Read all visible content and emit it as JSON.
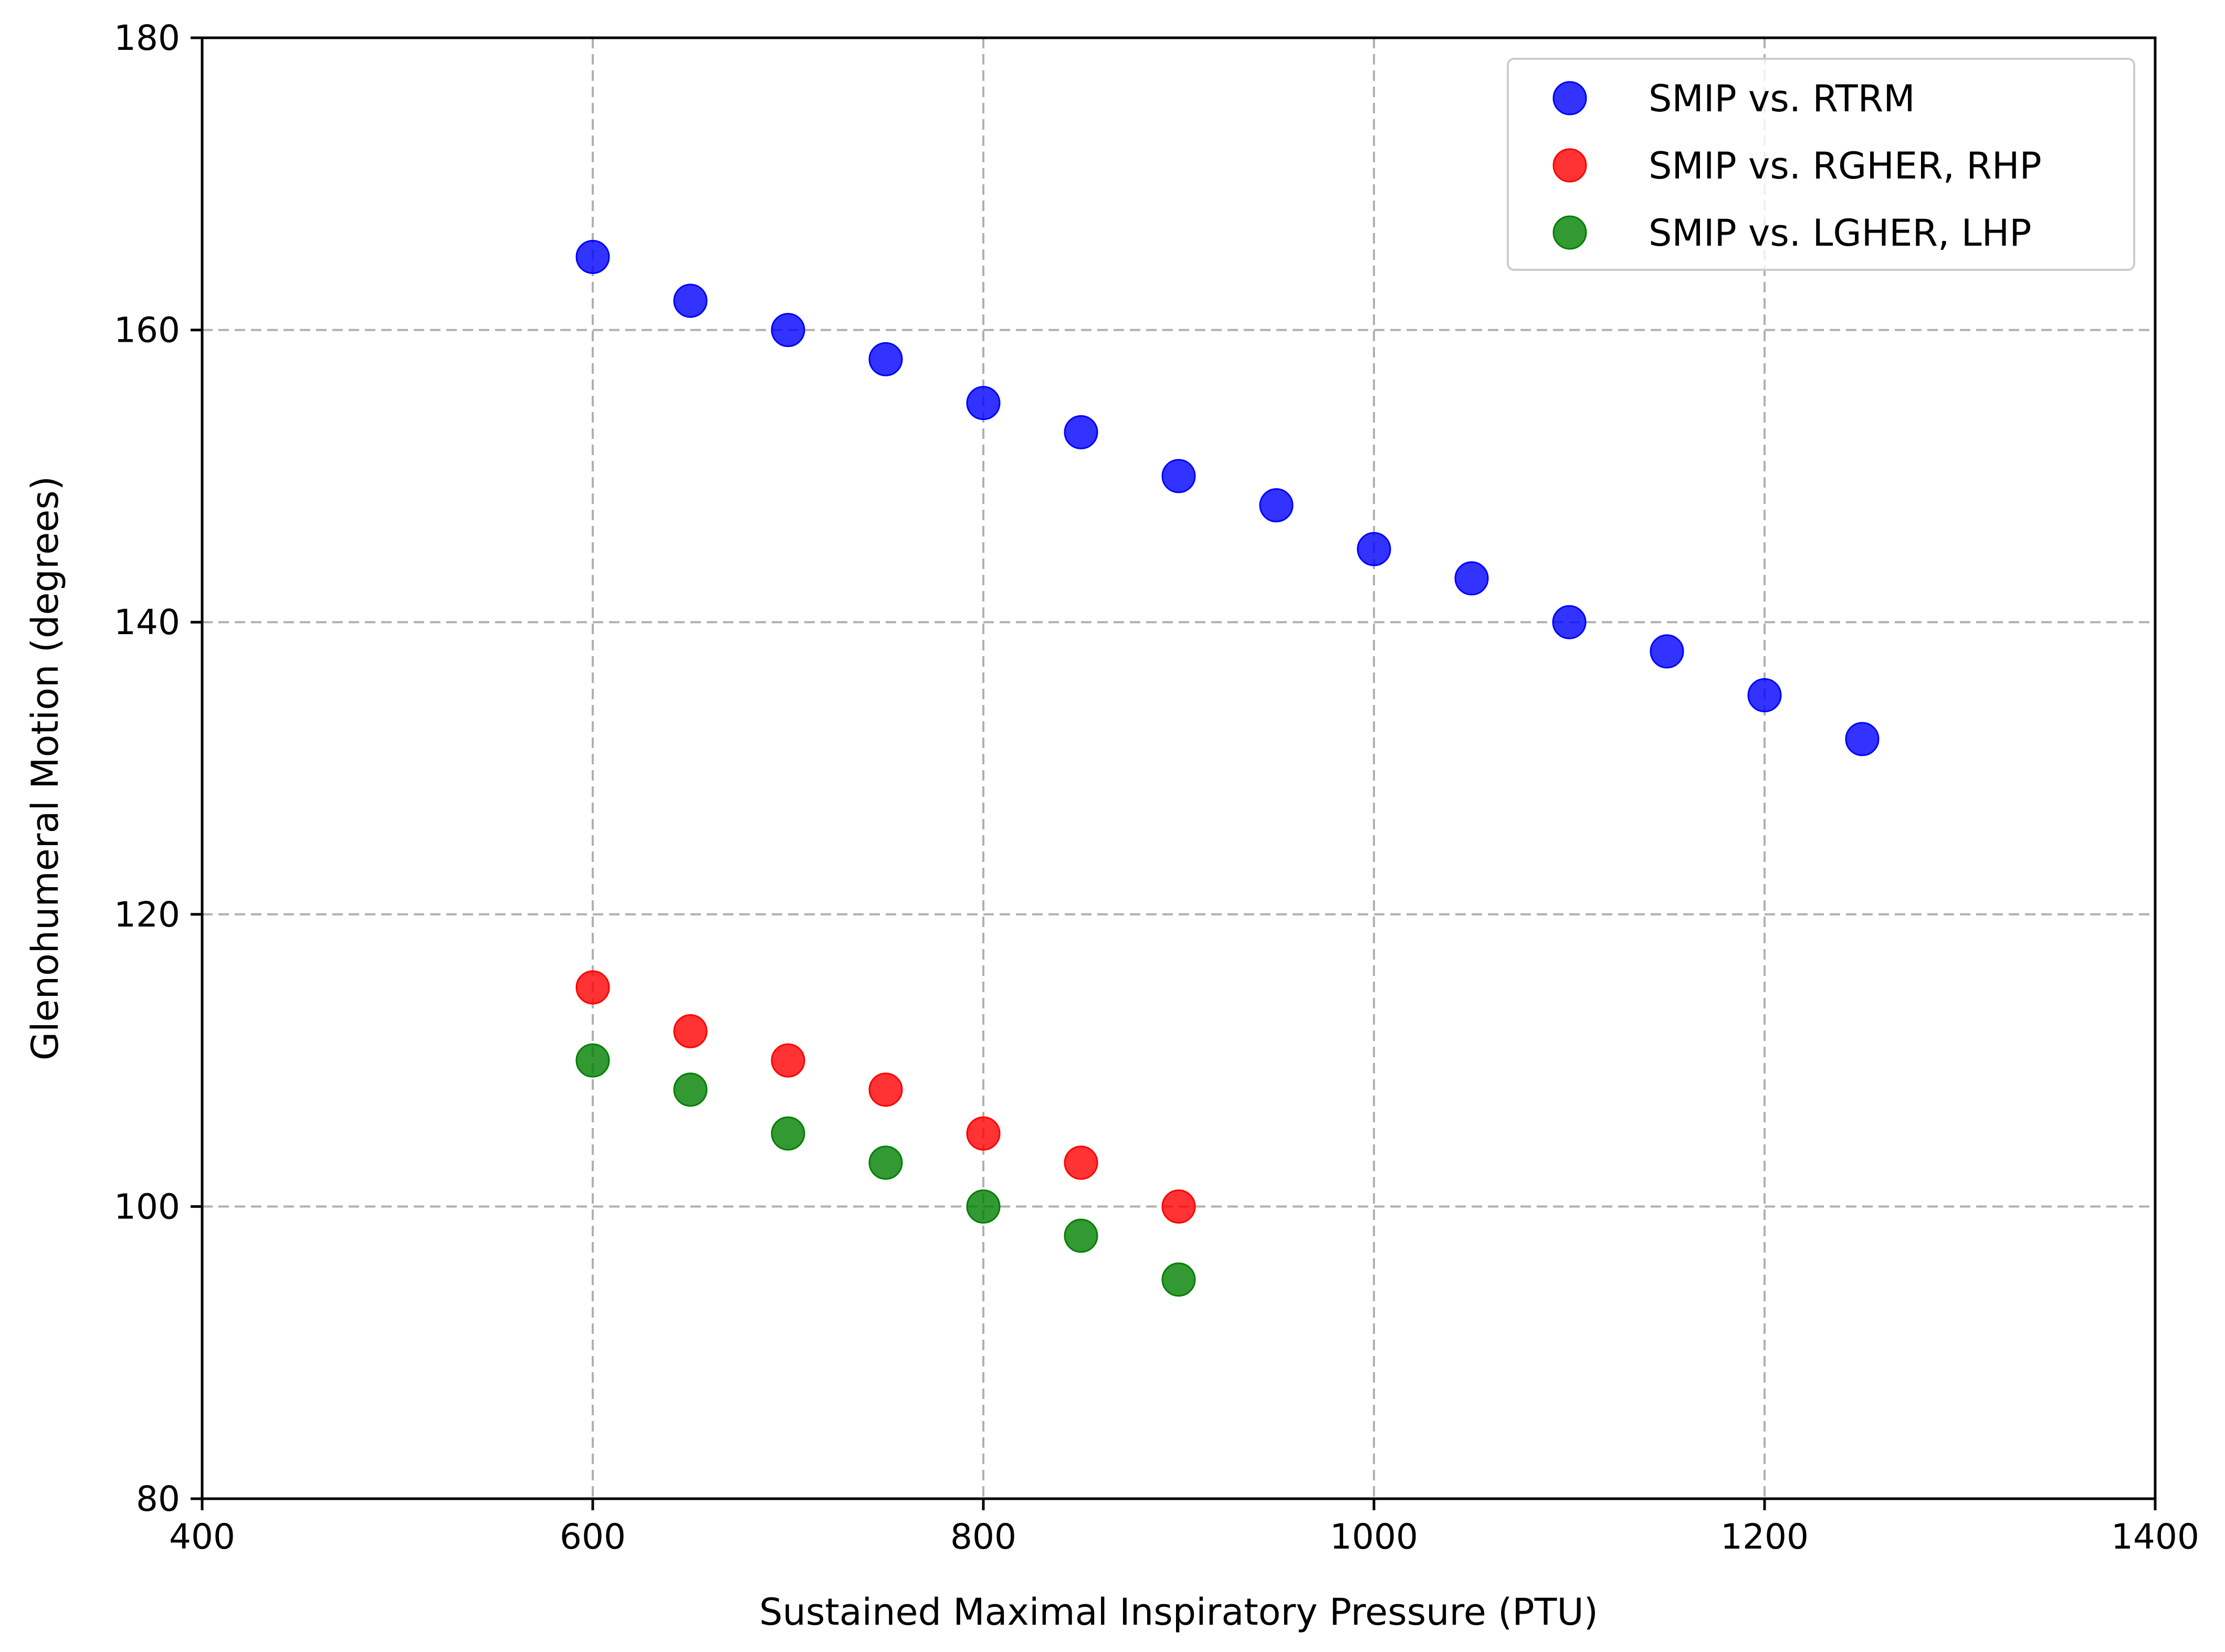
{
  "chart_data": {
    "type": "scatter",
    "title": "",
    "xlabel": "Sustained Maximal Inspiratory Pressure (PTU)",
    "ylabel": "Glenohumeral Motion (degrees)",
    "xlim": [
      400,
      1400
    ],
    "ylim": [
      80,
      180
    ],
    "xticks": [
      400,
      600,
      800,
      1000,
      1200,
      1400
    ],
    "yticks": [
      80,
      100,
      120,
      140,
      160,
      180
    ],
    "grid": true,
    "legend_position": "top-right",
    "series": [
      {
        "name": "SMIP vs. RTRM",
        "color": "#0000ff",
        "x": [
          600,
          650,
          700,
          750,
          800,
          850,
          900,
          950,
          1000,
          1050,
          1100,
          1150,
          1200,
          1250
        ],
        "y": [
          165,
          162,
          160,
          158,
          155,
          153,
          150,
          148,
          145,
          143,
          140,
          138,
          135,
          132
        ]
      },
      {
        "name": "SMIP vs. RGHER, RHP",
        "color": "#ff0000",
        "x": [
          600,
          650,
          700,
          750,
          800,
          850,
          900
        ],
        "y": [
          115,
          112,
          110,
          108,
          105,
          103,
          100
        ]
      },
      {
        "name": "SMIP vs. LGHER, LHP",
        "color": "#008000",
        "x": [
          600,
          650,
          700,
          750,
          800,
          850,
          900
        ],
        "y": [
          110,
          108,
          105,
          103,
          100,
          98,
          95
        ]
      }
    ]
  }
}
